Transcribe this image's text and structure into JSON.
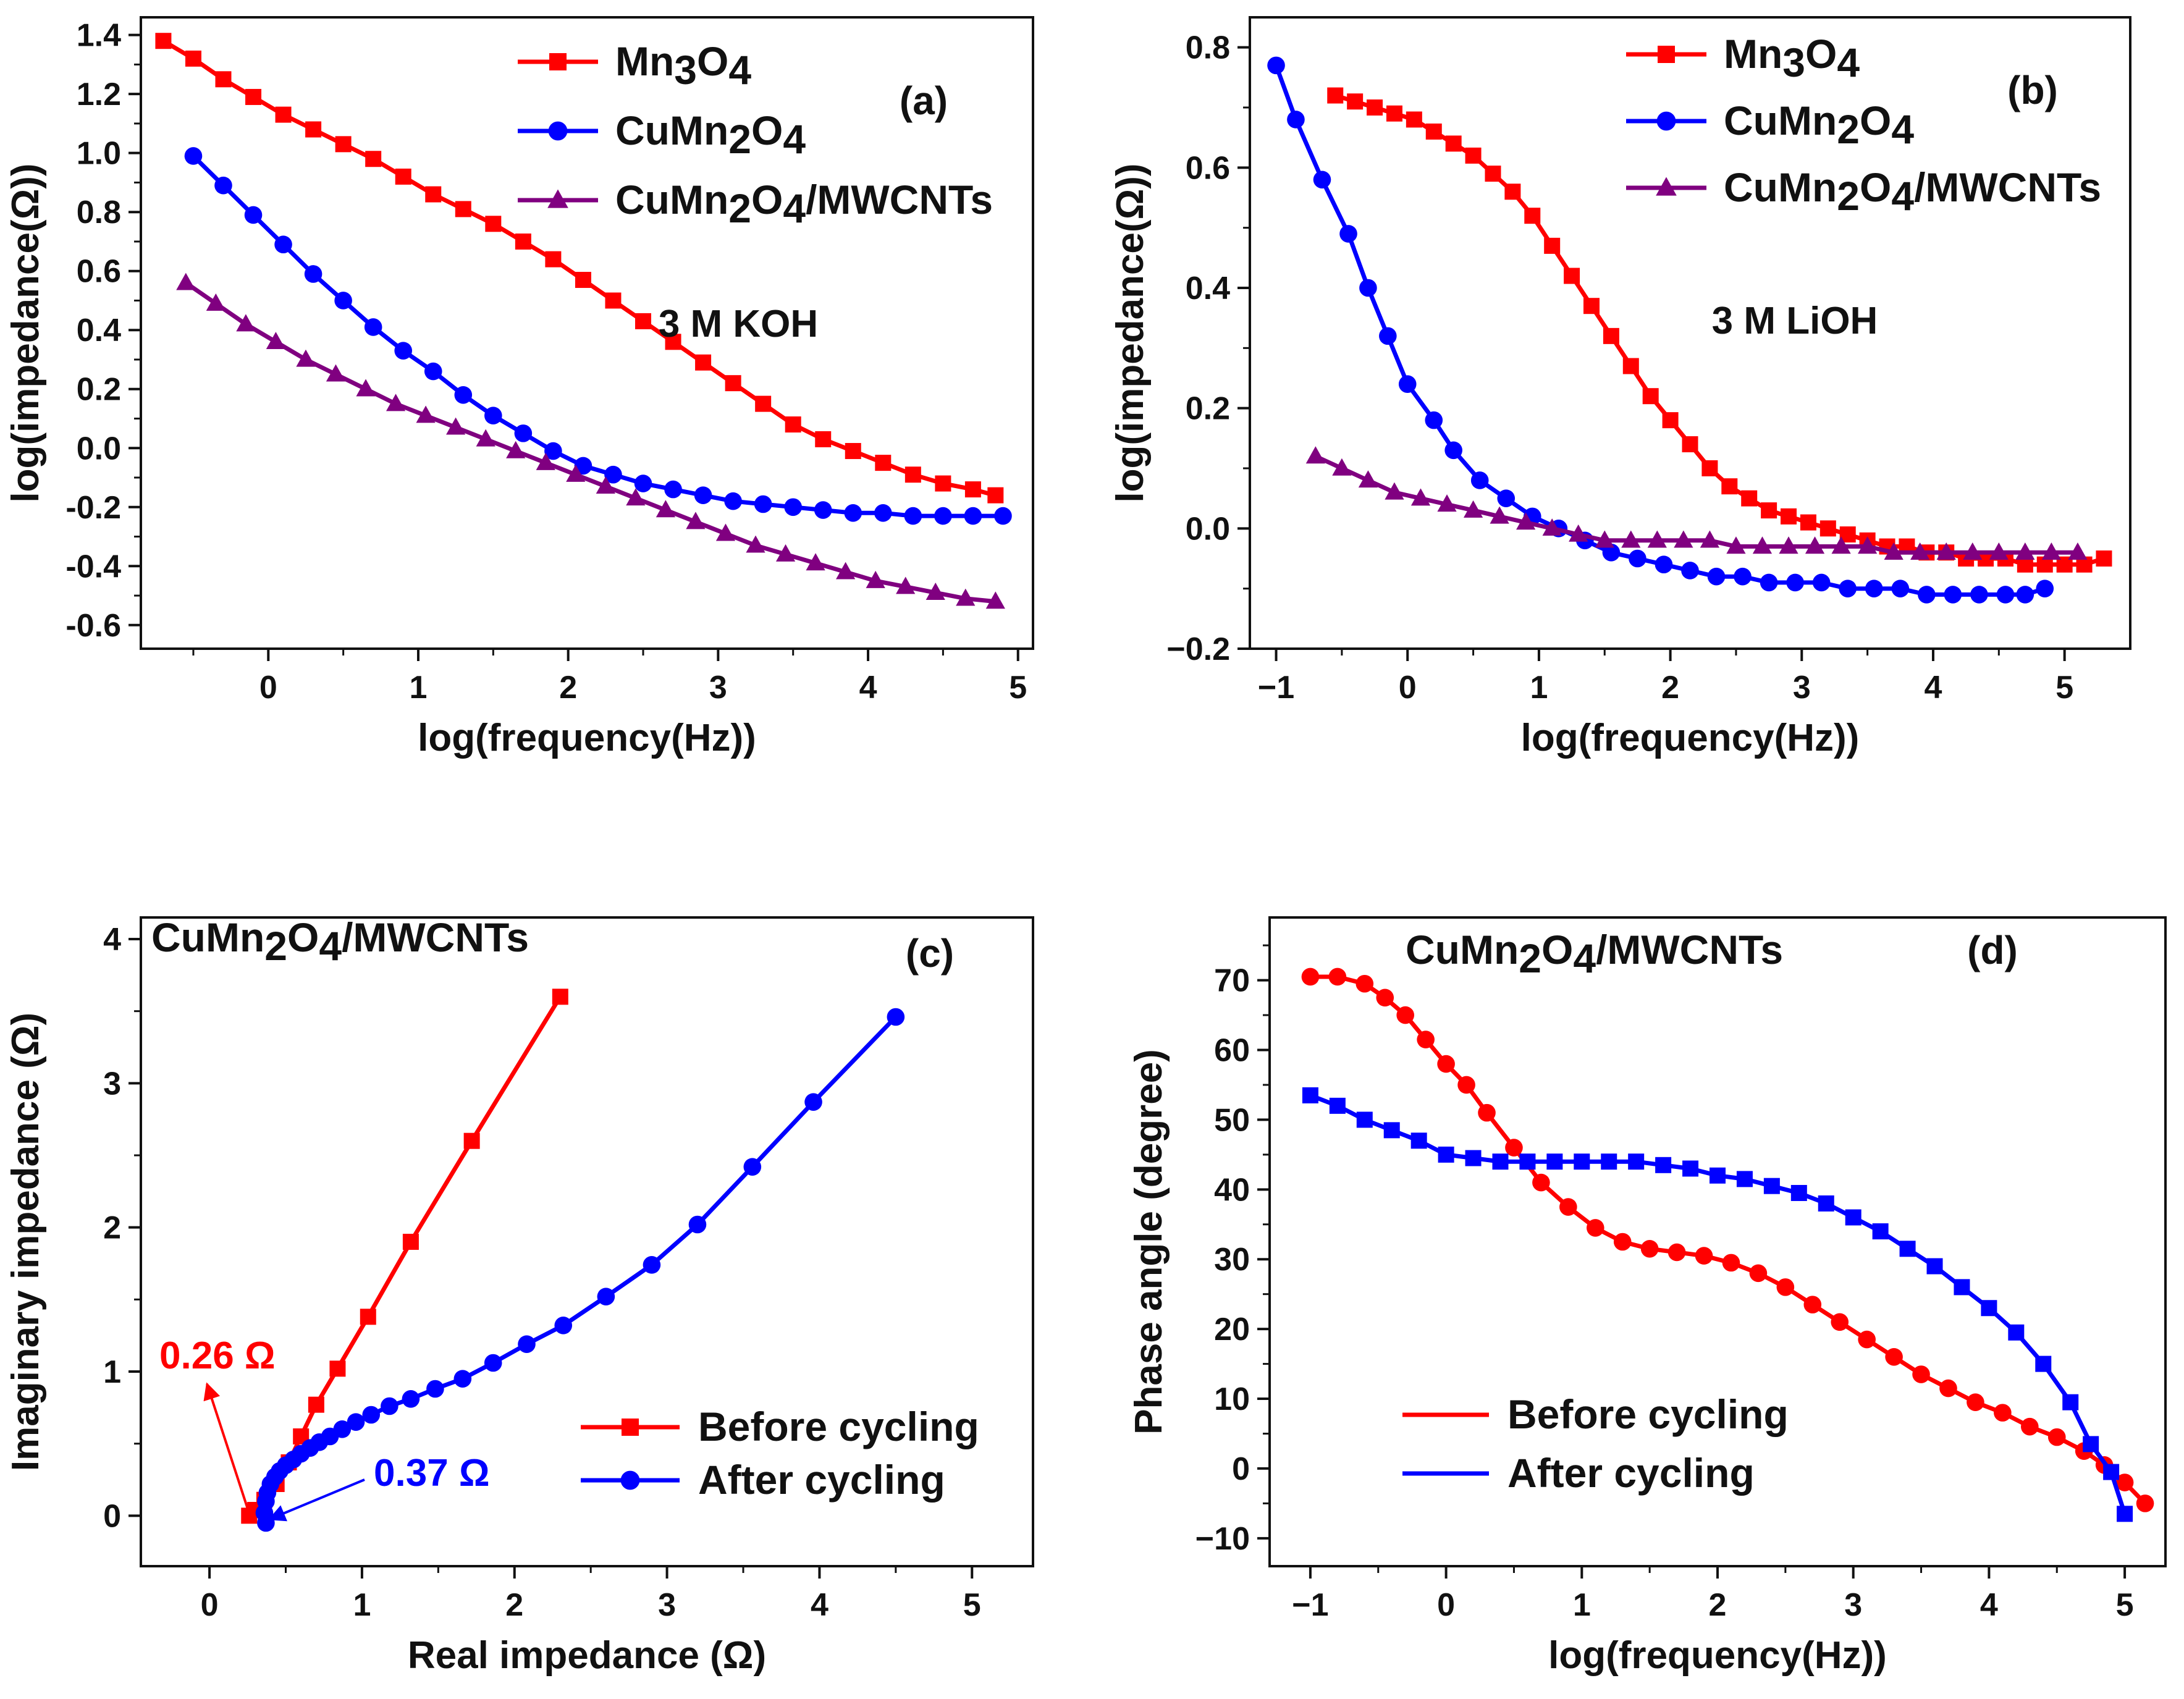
{
  "chart_data": [
    {
      "id": "a",
      "type": "line",
      "panel_label": "(a)",
      "annotation": "3 M KOH",
      "xlabel": "log(frequency(Hz))",
      "ylabel": "log(impedance(Ω))",
      "xlim": [
        -0.85,
        5.1
      ],
      "ylim": [
        -0.68,
        1.46
      ],
      "xticks": [
        0,
        1,
        2,
        3,
        4,
        5
      ],
      "yticks": [
        -0.6,
        -0.4,
        -0.2,
        0.0,
        0.2,
        0.4,
        0.6,
        0.8,
        1.0,
        1.2,
        1.4
      ],
      "ytick_labels": [
        "-0.6",
        "-0.4",
        "-0.2",
        "0.0",
        "0.2",
        "0.4",
        "0.6",
        "0.8",
        "1.0",
        "1.2",
        "1.4"
      ],
      "legend": [
        {
          "name": "Mn3O4",
          "base": "Mn",
          "sub1": "3",
          "mid": "O",
          "sub2": "4",
          "tail": ""
        },
        {
          "name": "CuMn2O4",
          "base": "CuMn",
          "sub1": "2",
          "mid": "O",
          "sub2": "4",
          "tail": ""
        },
        {
          "name": "CuMn2O4/MWCNTs",
          "base": "CuMn",
          "sub1": "2",
          "mid": "O",
          "sub2": "4",
          "tail": "/MWCNTs"
        }
      ],
      "series": [
        {
          "name": "Mn3O4",
          "color": "#ff0000",
          "marker": "square",
          "x": [
            -0.7,
            -0.5,
            -0.3,
            -0.1,
            0.1,
            0.3,
            0.5,
            0.7,
            0.9,
            1.1,
            1.3,
            1.5,
            1.7,
            1.9,
            2.1,
            2.3,
            2.5,
            2.7,
            2.9,
            3.1,
            3.3,
            3.5,
            3.7,
            3.9,
            4.1,
            4.3,
            4.5,
            4.7,
            4.85
          ],
          "y": [
            1.38,
            1.32,
            1.25,
            1.19,
            1.13,
            1.08,
            1.03,
            0.98,
            0.92,
            0.86,
            0.81,
            0.76,
            0.7,
            0.64,
            0.57,
            0.5,
            0.43,
            0.36,
            0.29,
            0.22,
            0.15,
            0.08,
            0.03,
            -0.01,
            -0.05,
            -0.09,
            -0.12,
            -0.14,
            -0.16
          ]
        },
        {
          "name": "CuMn2O4",
          "color": "#0000ff",
          "marker": "circle",
          "x": [
            -0.5,
            -0.3,
            -0.1,
            0.1,
            0.3,
            0.5,
            0.7,
            0.9,
            1.1,
            1.3,
            1.5,
            1.7,
            1.9,
            2.1,
            2.3,
            2.5,
            2.7,
            2.9,
            3.1,
            3.3,
            3.5,
            3.7,
            3.9,
            4.1,
            4.3,
            4.5,
            4.7,
            4.9
          ],
          "y": [
            0.99,
            0.89,
            0.79,
            0.69,
            0.59,
            0.5,
            0.41,
            0.33,
            0.26,
            0.18,
            0.11,
            0.05,
            -0.01,
            -0.06,
            -0.09,
            -0.12,
            -0.14,
            -0.16,
            -0.18,
            -0.19,
            -0.2,
            -0.21,
            -0.22,
            -0.22,
            -0.23,
            -0.23,
            -0.23,
            -0.23
          ]
        },
        {
          "name": "CuMn2O4/MWCNTs",
          "color": "#800080",
          "marker": "triangle",
          "x": [
            -0.55,
            -0.35,
            -0.15,
            0.05,
            0.25,
            0.45,
            0.65,
            0.85,
            1.05,
            1.25,
            1.45,
            1.65,
            1.85,
            2.05,
            2.25,
            2.45,
            2.65,
            2.85,
            3.05,
            3.25,
            3.45,
            3.65,
            3.85,
            4.05,
            4.25,
            4.45,
            4.65,
            4.85
          ],
          "y": [
            0.56,
            0.49,
            0.42,
            0.36,
            0.3,
            0.25,
            0.2,
            0.15,
            0.11,
            0.07,
            0.03,
            -0.01,
            -0.05,
            -0.09,
            -0.13,
            -0.17,
            -0.21,
            -0.25,
            -0.29,
            -0.33,
            -0.36,
            -0.39,
            -0.42,
            -0.45,
            -0.47,
            -0.49,
            -0.51,
            -0.52
          ]
        }
      ]
    },
    {
      "id": "b",
      "type": "line",
      "panel_label": "(b)",
      "annotation": "3 M LiOH",
      "xlabel": "log(frequency(Hz))",
      "ylabel": "log(impedance(Ω))",
      "xlim": [
        -1.2,
        5.5
      ],
      "ylim": [
        -0.2,
        0.85
      ],
      "xticks": [
        -1,
        0,
        1,
        2,
        3,
        4,
        5
      ],
      "xtick_labels": [
        "−1",
        "0",
        "1",
        "2",
        "3",
        "4",
        "5"
      ],
      "yticks": [
        -0.2,
        0.0,
        0.2,
        0.4,
        0.6,
        0.8
      ],
      "ytick_labels": [
        "−0.2",
        "0.0",
        "0.2",
        "0.4",
        "0.6",
        "0.8"
      ],
      "legend": [
        {
          "name": "Mn3O4",
          "base": "Mn",
          "sub1": "3",
          "mid": "O",
          "sub2": "4",
          "tail": ""
        },
        {
          "name": "CuMn2O4",
          "base": "CuMn",
          "sub1": "2",
          "mid": "O",
          "sub2": "4",
          "tail": ""
        },
        {
          "name": "CuMn2O4/MWCNTs",
          "base": "CuMn",
          "sub1": "2",
          "mid": "O",
          "sub2": "4",
          "tail": "/MWCNTs"
        }
      ],
      "series": [
        {
          "name": "Mn3O4",
          "color": "#ff0000",
          "marker": "square",
          "x": [
            -0.55,
            -0.4,
            -0.25,
            -0.1,
            0.05,
            0.2,
            0.35,
            0.5,
            0.65,
            0.8,
            0.95,
            1.1,
            1.25,
            1.4,
            1.55,
            1.7,
            1.85,
            2.0,
            2.15,
            2.3,
            2.45,
            2.6,
            2.75,
            2.9,
            3.05,
            3.2,
            3.35,
            3.5,
            3.65,
            3.8,
            3.95,
            4.1,
            4.25,
            4.4,
            4.55,
            4.7,
            4.85,
            5.0,
            5.15,
            5.3
          ],
          "y": [
            0.72,
            0.71,
            0.7,
            0.69,
            0.68,
            0.66,
            0.64,
            0.62,
            0.59,
            0.56,
            0.52,
            0.47,
            0.42,
            0.37,
            0.32,
            0.27,
            0.22,
            0.18,
            0.14,
            0.1,
            0.07,
            0.05,
            0.03,
            0.02,
            0.01,
            0.0,
            -0.01,
            -0.02,
            -0.03,
            -0.03,
            -0.04,
            -0.04,
            -0.05,
            -0.05,
            -0.05,
            -0.06,
            -0.06,
            -0.06,
            -0.06,
            -0.05
          ]
        },
        {
          "name": "CuMn2O4",
          "color": "#0000ff",
          "marker": "circle",
          "x": [
            -1.0,
            -0.85,
            -0.65,
            -0.45,
            -0.3,
            -0.15,
            0.0,
            0.2,
            0.35,
            0.55,
            0.75,
            0.95,
            1.15,
            1.35,
            1.55,
            1.75,
            1.95,
            2.15,
            2.35,
            2.55,
            2.75,
            2.95,
            3.15,
            3.35,
            3.55,
            3.75,
            3.95,
            4.15,
            4.35,
            4.55,
            4.7,
            4.85
          ],
          "y": [
            0.77,
            0.68,
            0.58,
            0.49,
            0.4,
            0.32,
            0.24,
            0.18,
            0.13,
            0.08,
            0.05,
            0.02,
            0.0,
            -0.02,
            -0.04,
            -0.05,
            -0.06,
            -0.07,
            -0.08,
            -0.08,
            -0.09,
            -0.09,
            -0.09,
            -0.1,
            -0.1,
            -0.1,
            -0.11,
            -0.11,
            -0.11,
            -0.11,
            -0.11,
            -0.1
          ]
        },
        {
          "name": "CuMn2O4/MWCNTs",
          "color": "#800080",
          "marker": "triangle",
          "x": [
            -0.7,
            -0.5,
            -0.3,
            -0.1,
            0.1,
            0.3,
            0.5,
            0.7,
            0.9,
            1.1,
            1.3,
            1.5,
            1.7,
            1.9,
            2.1,
            2.3,
            2.5,
            2.7,
            2.9,
            3.1,
            3.3,
            3.5,
            3.7,
            3.9,
            4.1,
            4.3,
            4.5,
            4.7,
            4.9,
            5.1
          ],
          "y": [
            0.12,
            0.1,
            0.08,
            0.06,
            0.05,
            0.04,
            0.03,
            0.02,
            0.01,
            0.0,
            -0.01,
            -0.02,
            -0.02,
            -0.02,
            -0.02,
            -0.02,
            -0.03,
            -0.03,
            -0.03,
            -0.03,
            -0.03,
            -0.03,
            -0.04,
            -0.04,
            -0.04,
            -0.04,
            -0.04,
            -0.04,
            -0.04,
            -0.04
          ]
        }
      ]
    },
    {
      "id": "c",
      "type": "line",
      "panel_label": "(c)",
      "title": {
        "base": "CuMn",
        "sub1": "2",
        "mid": "O",
        "sub2": "4",
        "tail": "/MWCNTs"
      },
      "xlabel": "Real impedance (Ω)",
      "ylabel": "Imaginary impedance (Ω)",
      "xlim": [
        -0.45,
        5.4
      ],
      "ylim": [
        -0.35,
        4.15
      ],
      "xticks": [
        0,
        1,
        2,
        3,
        4,
        5
      ],
      "yticks": [
        0,
        1,
        2,
        3,
        4
      ],
      "annotations": [
        {
          "text": "0.26 Ω",
          "color": "#ff0000",
          "at": [
            0.26,
            0.0
          ]
        },
        {
          "text": "0.37 Ω",
          "color": "#0000ff",
          "at": [
            0.37,
            -0.05
          ]
        }
      ],
      "legend": [
        {
          "name": "Before cycling",
          "color": "#ff0000",
          "marker": "square"
        },
        {
          "name": "After cycling",
          "color": "#0000ff",
          "marker": "circle"
        }
      ],
      "series": [
        {
          "name": "Before cycling",
          "color": "#ff0000",
          "marker": "square",
          "x": [
            0.26,
            0.3,
            0.36,
            0.44,
            0.52,
            0.6,
            0.7,
            0.84,
            1.04,
            1.32,
            1.72,
            2.3
          ],
          "y": [
            0.0,
            0.04,
            0.11,
            0.22,
            0.37,
            0.55,
            0.77,
            1.02,
            1.38,
            1.9,
            2.6,
            3.6
          ]
        },
        {
          "name": "After cycling",
          "color": "#0000ff",
          "marker": "circle",
          "x": [
            0.37,
            0.36,
            0.37,
            0.38,
            0.4,
            0.43,
            0.46,
            0.5,
            0.55,
            0.6,
            0.66,
            0.72,
            0.79,
            0.87,
            0.96,
            1.06,
            1.18,
            1.32,
            1.48,
            1.66,
            1.86,
            2.08,
            2.32,
            2.6,
            2.9,
            3.2,
            3.56,
            3.96,
            4.5
          ],
          "y": [
            -0.05,
            0.02,
            0.1,
            0.16,
            0.22,
            0.27,
            0.31,
            0.35,
            0.39,
            0.43,
            0.47,
            0.51,
            0.55,
            0.6,
            0.65,
            0.7,
            0.76,
            0.81,
            0.88,
            0.95,
            1.06,
            1.19,
            1.32,
            1.52,
            1.74,
            2.02,
            2.42,
            2.87,
            3.46
          ]
        }
      ]
    },
    {
      "id": "d",
      "type": "line",
      "panel_label": "(d)",
      "title": {
        "base": "CuMn",
        "sub1": "2",
        "mid": "O",
        "sub2": "4",
        "tail": "/MWCNTs"
      },
      "xlabel": "log(frequency(Hz))",
      "ylabel": "Phase angle (degree)",
      "xlim": [
        -1.3,
        5.3
      ],
      "ylim": [
        -14,
        79
      ],
      "xticks": [
        -1,
        0,
        1,
        2,
        3,
        4,
        5
      ],
      "xtick_labels": [
        "−1",
        "0",
        "1",
        "2",
        "3",
        "4",
        "5"
      ],
      "yticks": [
        -10,
        0,
        10,
        20,
        30,
        40,
        50,
        60,
        70
      ],
      "ytick_labels": [
        "−10",
        "0",
        "10",
        "20",
        "30",
        "40",
        "50",
        "60",
        "70"
      ],
      "legend": [
        {
          "name": "Before cycling",
          "color": "#ff0000",
          "marker": "none"
        },
        {
          "name": "After cycling",
          "color": "#0000ff",
          "marker": "none"
        }
      ],
      "series": [
        {
          "name": "Before cycling",
          "color": "#ff0000",
          "marker": "circle",
          "x": [
            -1.0,
            -0.8,
            -0.6,
            -0.45,
            -0.3,
            -0.15,
            0.0,
            0.15,
            0.3,
            0.5,
            0.7,
            0.9,
            1.1,
            1.3,
            1.5,
            1.7,
            1.9,
            2.1,
            2.3,
            2.5,
            2.7,
            2.9,
            3.1,
            3.3,
            3.5,
            3.7,
            3.9,
            4.1,
            4.3,
            4.5,
            4.7,
            4.85,
            5.0,
            5.15
          ],
          "y": [
            70.5,
            70.5,
            69.5,
            67.5,
            65,
            61.5,
            58,
            55,
            51,
            46,
            41,
            37.5,
            34.5,
            32.5,
            31.5,
            31,
            30.5,
            29.5,
            28,
            26,
            23.5,
            21,
            18.5,
            16,
            13.5,
            11.5,
            9.5,
            8,
            6,
            4.5,
            2.5,
            0.5,
            -2,
            -5
          ]
        },
        {
          "name": "After cycling",
          "color": "#0000ff",
          "marker": "square",
          "x": [
            -1.0,
            -0.8,
            -0.6,
            -0.4,
            -0.2,
            0.0,
            0.2,
            0.4,
            0.6,
            0.8,
            1.0,
            1.2,
            1.4,
            1.6,
            1.8,
            2.0,
            2.2,
            2.4,
            2.6,
            2.8,
            3.0,
            3.2,
            3.4,
            3.6,
            3.8,
            4.0,
            4.2,
            4.4,
            4.6,
            4.75,
            4.9,
            5.0
          ],
          "y": [
            53.5,
            52,
            50,
            48.5,
            47,
            45,
            44.5,
            44,
            44,
            44,
            44,
            44,
            44,
            43.5,
            43,
            42,
            41.5,
            40.5,
            39.5,
            38,
            36,
            34,
            31.5,
            29,
            26,
            23,
            19.5,
            15,
            9.5,
            3.5,
            -0.5,
            -6.5
          ]
        }
      ]
    }
  ]
}
